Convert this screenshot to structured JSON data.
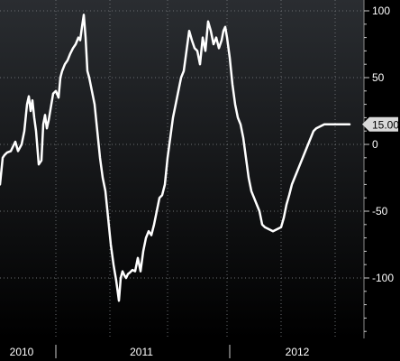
{
  "chart_data": {
    "type": "line",
    "title": "",
    "xlabel": "",
    "ylabel": "",
    "ylim": [
      -140,
      105
    ],
    "y_ticks": [
      100,
      50,
      0,
      -50,
      -100
    ],
    "y_tick_labels": [
      "100",
      "50",
      "0",
      "-50",
      "-100"
    ],
    "x_tick_labels": [
      "2010",
      "2011",
      "2012"
    ],
    "grid": true,
    "last_value_label": "15.00",
    "colors": {
      "background_top": "#2a2d31",
      "background_bottom": "#000000",
      "line": "#ffffff",
      "grid": "#6b6e72",
      "label_box": "#d9d9d9",
      "label_text": "#000000"
    },
    "series": [
      {
        "x": [
          0,
          3,
          5,
          8,
          12,
          17,
          20,
          24,
          27,
          30,
          32,
          34,
          36,
          38,
          40,
          43,
          46,
          48,
          50,
          52,
          54,
          57,
          59,
          62,
          65,
          67,
          69,
          72,
          75,
          78,
          81,
          84,
          87,
          89,
          91,
          93,
          95,
          97,
          99,
          102,
          105,
          108,
          111,
          114,
          117,
          120,
          123,
          126,
          129,
          132,
          134,
          136,
          138,
          140,
          142,
          144,
          147,
          150,
          153,
          156,
          159,
          162,
          165,
          168,
          171,
          174,
          177,
          180,
          183,
          186,
          189,
          192,
          195,
          198,
          201,
          204,
          207,
          210,
          213,
          216,
          219,
          222,
          225,
          228,
          231,
          234,
          237,
          240,
          243,
          246,
          248,
          250,
          252,
          255,
          258,
          261,
          264,
          267,
          270,
          273,
          276,
          279,
          282,
          285,
          288,
          291,
          294,
          297,
          300,
          303,
          306,
          309,
          312,
          315,
          318,
          321,
          324,
          327,
          330,
          333,
          336,
          339,
          342,
          345,
          348,
          351,
          354,
          357,
          360,
          363,
          366,
          369,
          372,
          375,
          378,
          381,
          384,
          386,
          388
        ],
        "values": [
          -30,
          -10,
          -8,
          -6,
          -5,
          2,
          -5,
          0,
          10,
          30,
          36,
          25,
          33,
          20,
          10,
          -15,
          -12,
          15,
          22,
          12,
          18,
          30,
          38,
          40,
          35,
          50,
          55,
          60,
          63,
          68,
          72,
          75,
          80,
          78,
          88,
          97,
          80,
          55,
          50,
          40,
          30,
          10,
          -10,
          -25,
          -35,
          -55,
          -75,
          -90,
          -102,
          -117,
          -100,
          -95,
          -98,
          -100,
          -97,
          -96,
          -94,
          -95,
          -85,
          -95,
          -80,
          -70,
          -65,
          -68,
          -60,
          -50,
          -40,
          -38,
          -30,
          -10,
          5,
          20,
          30,
          40,
          50,
          55,
          70,
          85,
          78,
          72,
          70,
          60,
          80,
          70,
          92,
          85,
          75,
          80,
          72,
          78,
          85,
          88,
          80,
          65,
          45,
          30,
          20,
          15,
          5,
          -10,
          -25,
          -35,
          -40,
          -45,
          -50,
          -60,
          -62,
          -63,
          -64,
          -65,
          -64,
          -63,
          -62,
          -55,
          -45,
          -38,
          -30,
          -25,
          -20,
          -15,
          -10,
          -5,
          0,
          5,
          10,
          12,
          13,
          14,
          15,
          15,
          15,
          15,
          15,
          15,
          15,
          15,
          15,
          15,
          15
        ]
      }
    ]
  }
}
